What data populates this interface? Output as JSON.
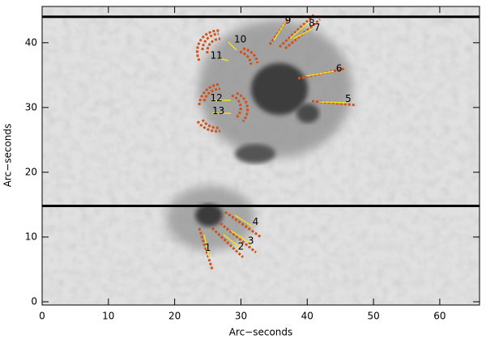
{
  "chart_data": {
    "type": "image",
    "x_label": "Arc−seconds",
    "y_label": "Arc−seconds",
    "xlim": [
      0,
      66
    ],
    "ylim": [
      -0.5,
      45.6
    ],
    "xticks": [
      0,
      10,
      20,
      30,
      40,
      50,
      60
    ],
    "yticks": [
      0,
      10,
      20,
      30,
      40
    ],
    "hlines": [
      44,
      14.8
    ],
    "hline_color": "#000000",
    "annotations": [
      {
        "text": "1",
        "x": 25.0,
        "y": 8.3
      },
      {
        "text": "2",
        "x": 30.0,
        "y": 8.5
      },
      {
        "text": "3",
        "x": 31.5,
        "y": 9.4
      },
      {
        "text": "4",
        "x": 32.2,
        "y": 12.3
      },
      {
        "text": "5",
        "x": 46.2,
        "y": 31.3
      },
      {
        "text": "6",
        "x": 44.8,
        "y": 36.0
      },
      {
        "text": "7",
        "x": 41.5,
        "y": 42.3
      },
      {
        "text": "8",
        "x": 40.7,
        "y": 43.0
      },
      {
        "text": "9",
        "x": 37.1,
        "y": 43.4
      },
      {
        "text": "10",
        "x": 29.9,
        "y": 40.5
      },
      {
        "text": "11",
        "x": 26.3,
        "y": 38.0
      },
      {
        "text": "12",
        "x": 26.3,
        "y": 31.4
      },
      {
        "text": "13",
        "x": 26.6,
        "y": 29.4
      }
    ]
  }
}
